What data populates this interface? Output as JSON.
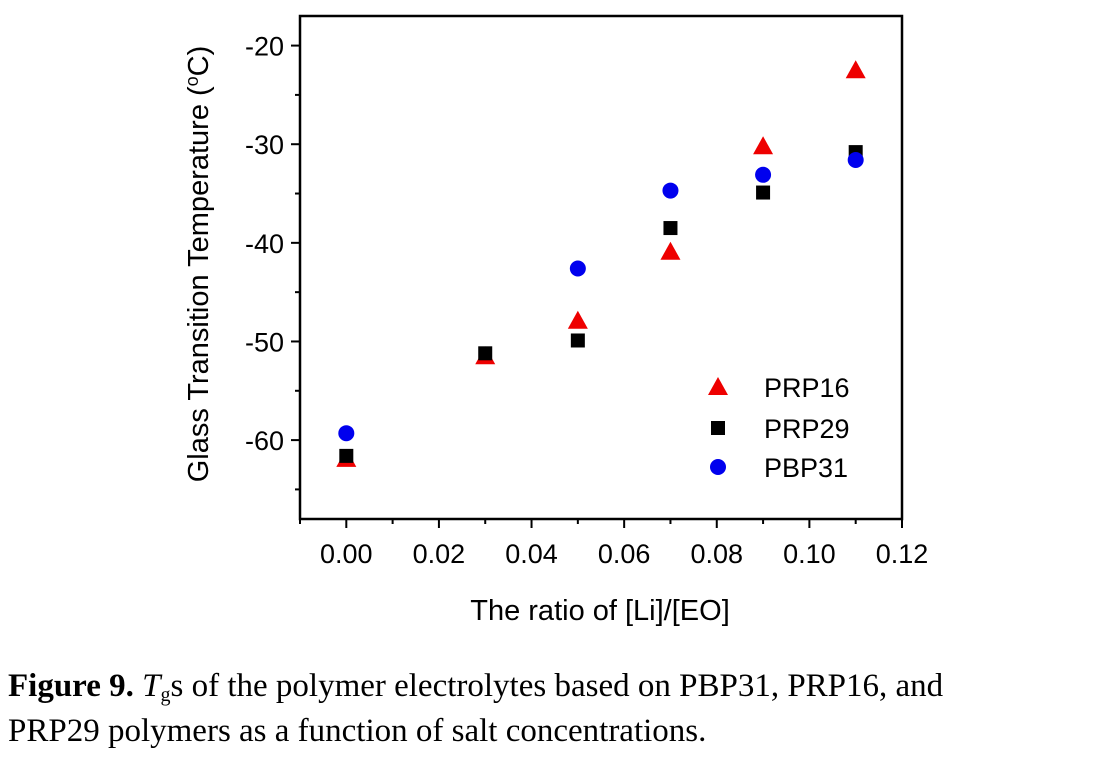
{
  "chart_data": {
    "type": "scatter",
    "xlabel": "The ratio of [Li]/[EO]",
    "ylabel": "Glass Transition Temperature (",
    "ylabel_sup": "o",
    "ylabel_tail": "C)",
    "xlim": [
      -0.01,
      0.12
    ],
    "ylim": [
      -68,
      -17
    ],
    "x_ticks": [
      "0.00",
      "0.02",
      "0.04",
      "0.06",
      "0.08",
      "0.10",
      "0.12"
    ],
    "x_tick_values": [
      0,
      0.02,
      0.04,
      0.06,
      0.08,
      0.1,
      0.12
    ],
    "y_ticks": [
      "-20",
      "-30",
      "-40",
      "-50",
      "-60"
    ],
    "y_tick_values": [
      -20,
      -30,
      -40,
      -50,
      -60
    ],
    "grid": false,
    "legend_position": "bottom-right",
    "series": [
      {
        "name": "PRP16",
        "marker": "triangle",
        "color": "#ee0000",
        "x": [
          0.0,
          0.03,
          0.05,
          0.07,
          0.09,
          0.11
        ],
        "y": [
          -61.9,
          -51.5,
          -47.9,
          -40.9,
          -30.2,
          -22.5
        ]
      },
      {
        "name": "PRP29",
        "marker": "square",
        "color": "#000000",
        "x": [
          0.0,
          0.03,
          0.05,
          0.07,
          0.09,
          0.11
        ],
        "y": [
          -61.6,
          -51.2,
          -49.9,
          -38.5,
          -34.9,
          -30.8
        ]
      },
      {
        "name": "PBP31",
        "marker": "circle",
        "color": "#0000ee",
        "x": [
          0.0,
          0.05,
          0.07,
          0.09,
          0.11
        ],
        "y": [
          -59.3,
          -42.6,
          -34.7,
          -33.1,
          -31.6
        ]
      }
    ]
  },
  "caption": {
    "label": "Figure 9.",
    "tg_symbol": "T",
    "tg_subscript": "g",
    "text_line1": "s of the polymer electrolytes based on PBP31, PRP16, and",
    "text_line2": "PRP29 polymers as a function of salt concentrations."
  }
}
